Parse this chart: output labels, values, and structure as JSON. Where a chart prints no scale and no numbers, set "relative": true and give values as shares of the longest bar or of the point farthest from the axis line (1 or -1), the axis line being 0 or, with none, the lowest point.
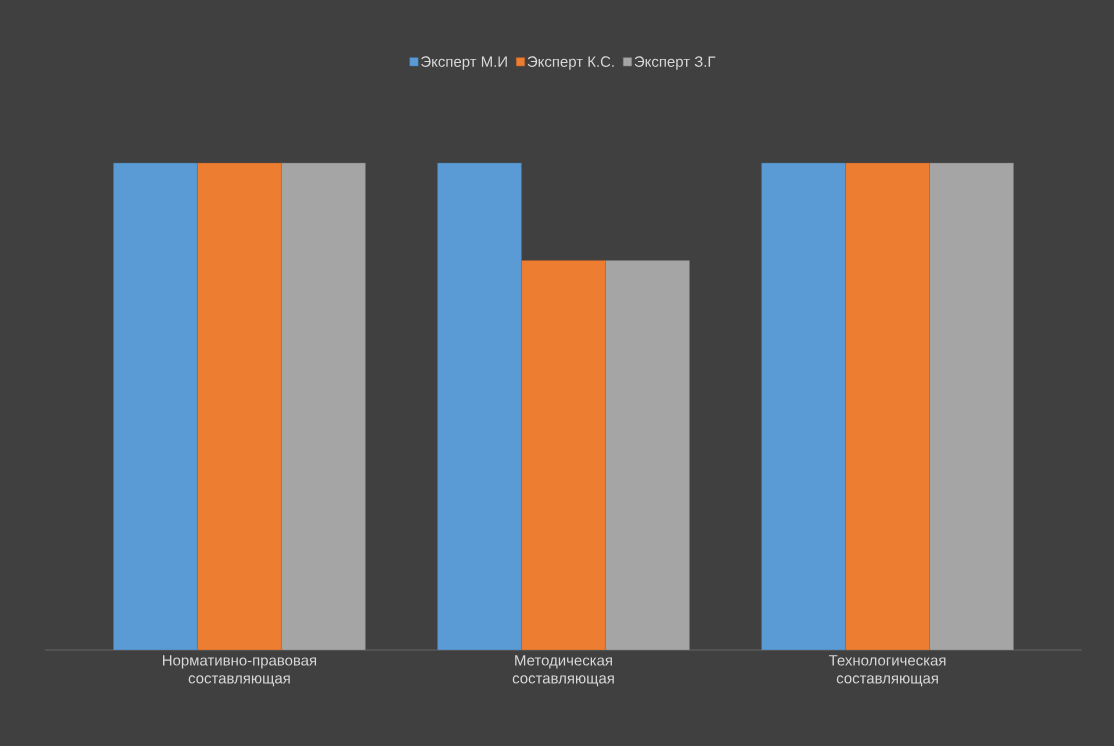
{
  "chart_data": {
    "type": "bar",
    "relative": true,
    "legend": "top",
    "categories": [
      "Нормативно-правовая составляющая",
      "Методическая составляющая",
      "Технологическая составляющая"
    ],
    "series": [
      {
        "name": "Эксперт М.И",
        "color": "#5b9bd5",
        "values": [
          1,
          1,
          1
        ]
      },
      {
        "name": "Эксперт К.С.",
        "color": "#ed7d31",
        "values": [
          1,
          0.8,
          1
        ]
      },
      {
        "name": "Эксперт З.Г",
        "color": "#a5a5a5",
        "values": [
          1,
          0.8,
          1
        ]
      }
    ]
  }
}
